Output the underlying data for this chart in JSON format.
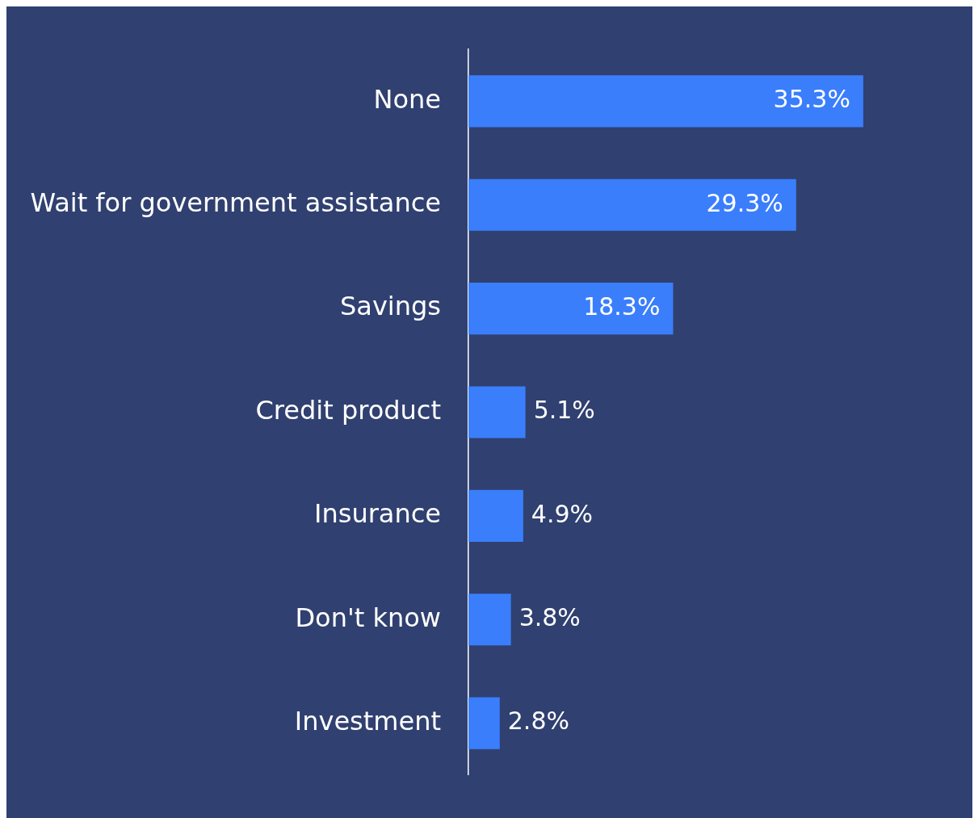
{
  "chart_data": {
    "type": "bar",
    "orientation": "horizontal",
    "categories": [
      "None",
      "Wait for government assistance",
      "Savings",
      "Credit product",
      "Insurance",
      "Don't know",
      "Investment"
    ],
    "values": [
      35.3,
      29.3,
      18.3,
      5.1,
      4.9,
      3.8,
      2.8
    ],
    "color": "#3a7efc",
    "value_labels": [
      "35.3%",
      "29.3%",
      "18.3%",
      "5.1%",
      "4.9%",
      "3.8%",
      "2.8%"
    ],
    "grid": false,
    "legend": false,
    "tick_labels": "y"
  }
}
